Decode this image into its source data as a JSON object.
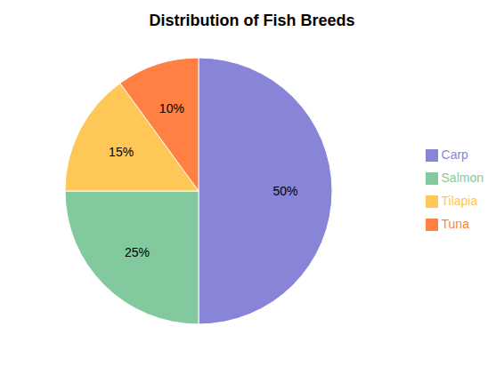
{
  "chart_data": {
    "type": "pie",
    "title": "Distribution of Fish Breeds",
    "categories": [
      "Carp",
      "Salmon",
      "Tilapia",
      "Tuna"
    ],
    "values": [
      50,
      25,
      15,
      10
    ],
    "value_labels": [
      "50%",
      "25%",
      "15%",
      "10%"
    ],
    "data_labels": true,
    "colors": [
      "#8884d8",
      "#82ca9d",
      "#ffc658",
      "#ff8042"
    ],
    "legend": "right"
  }
}
